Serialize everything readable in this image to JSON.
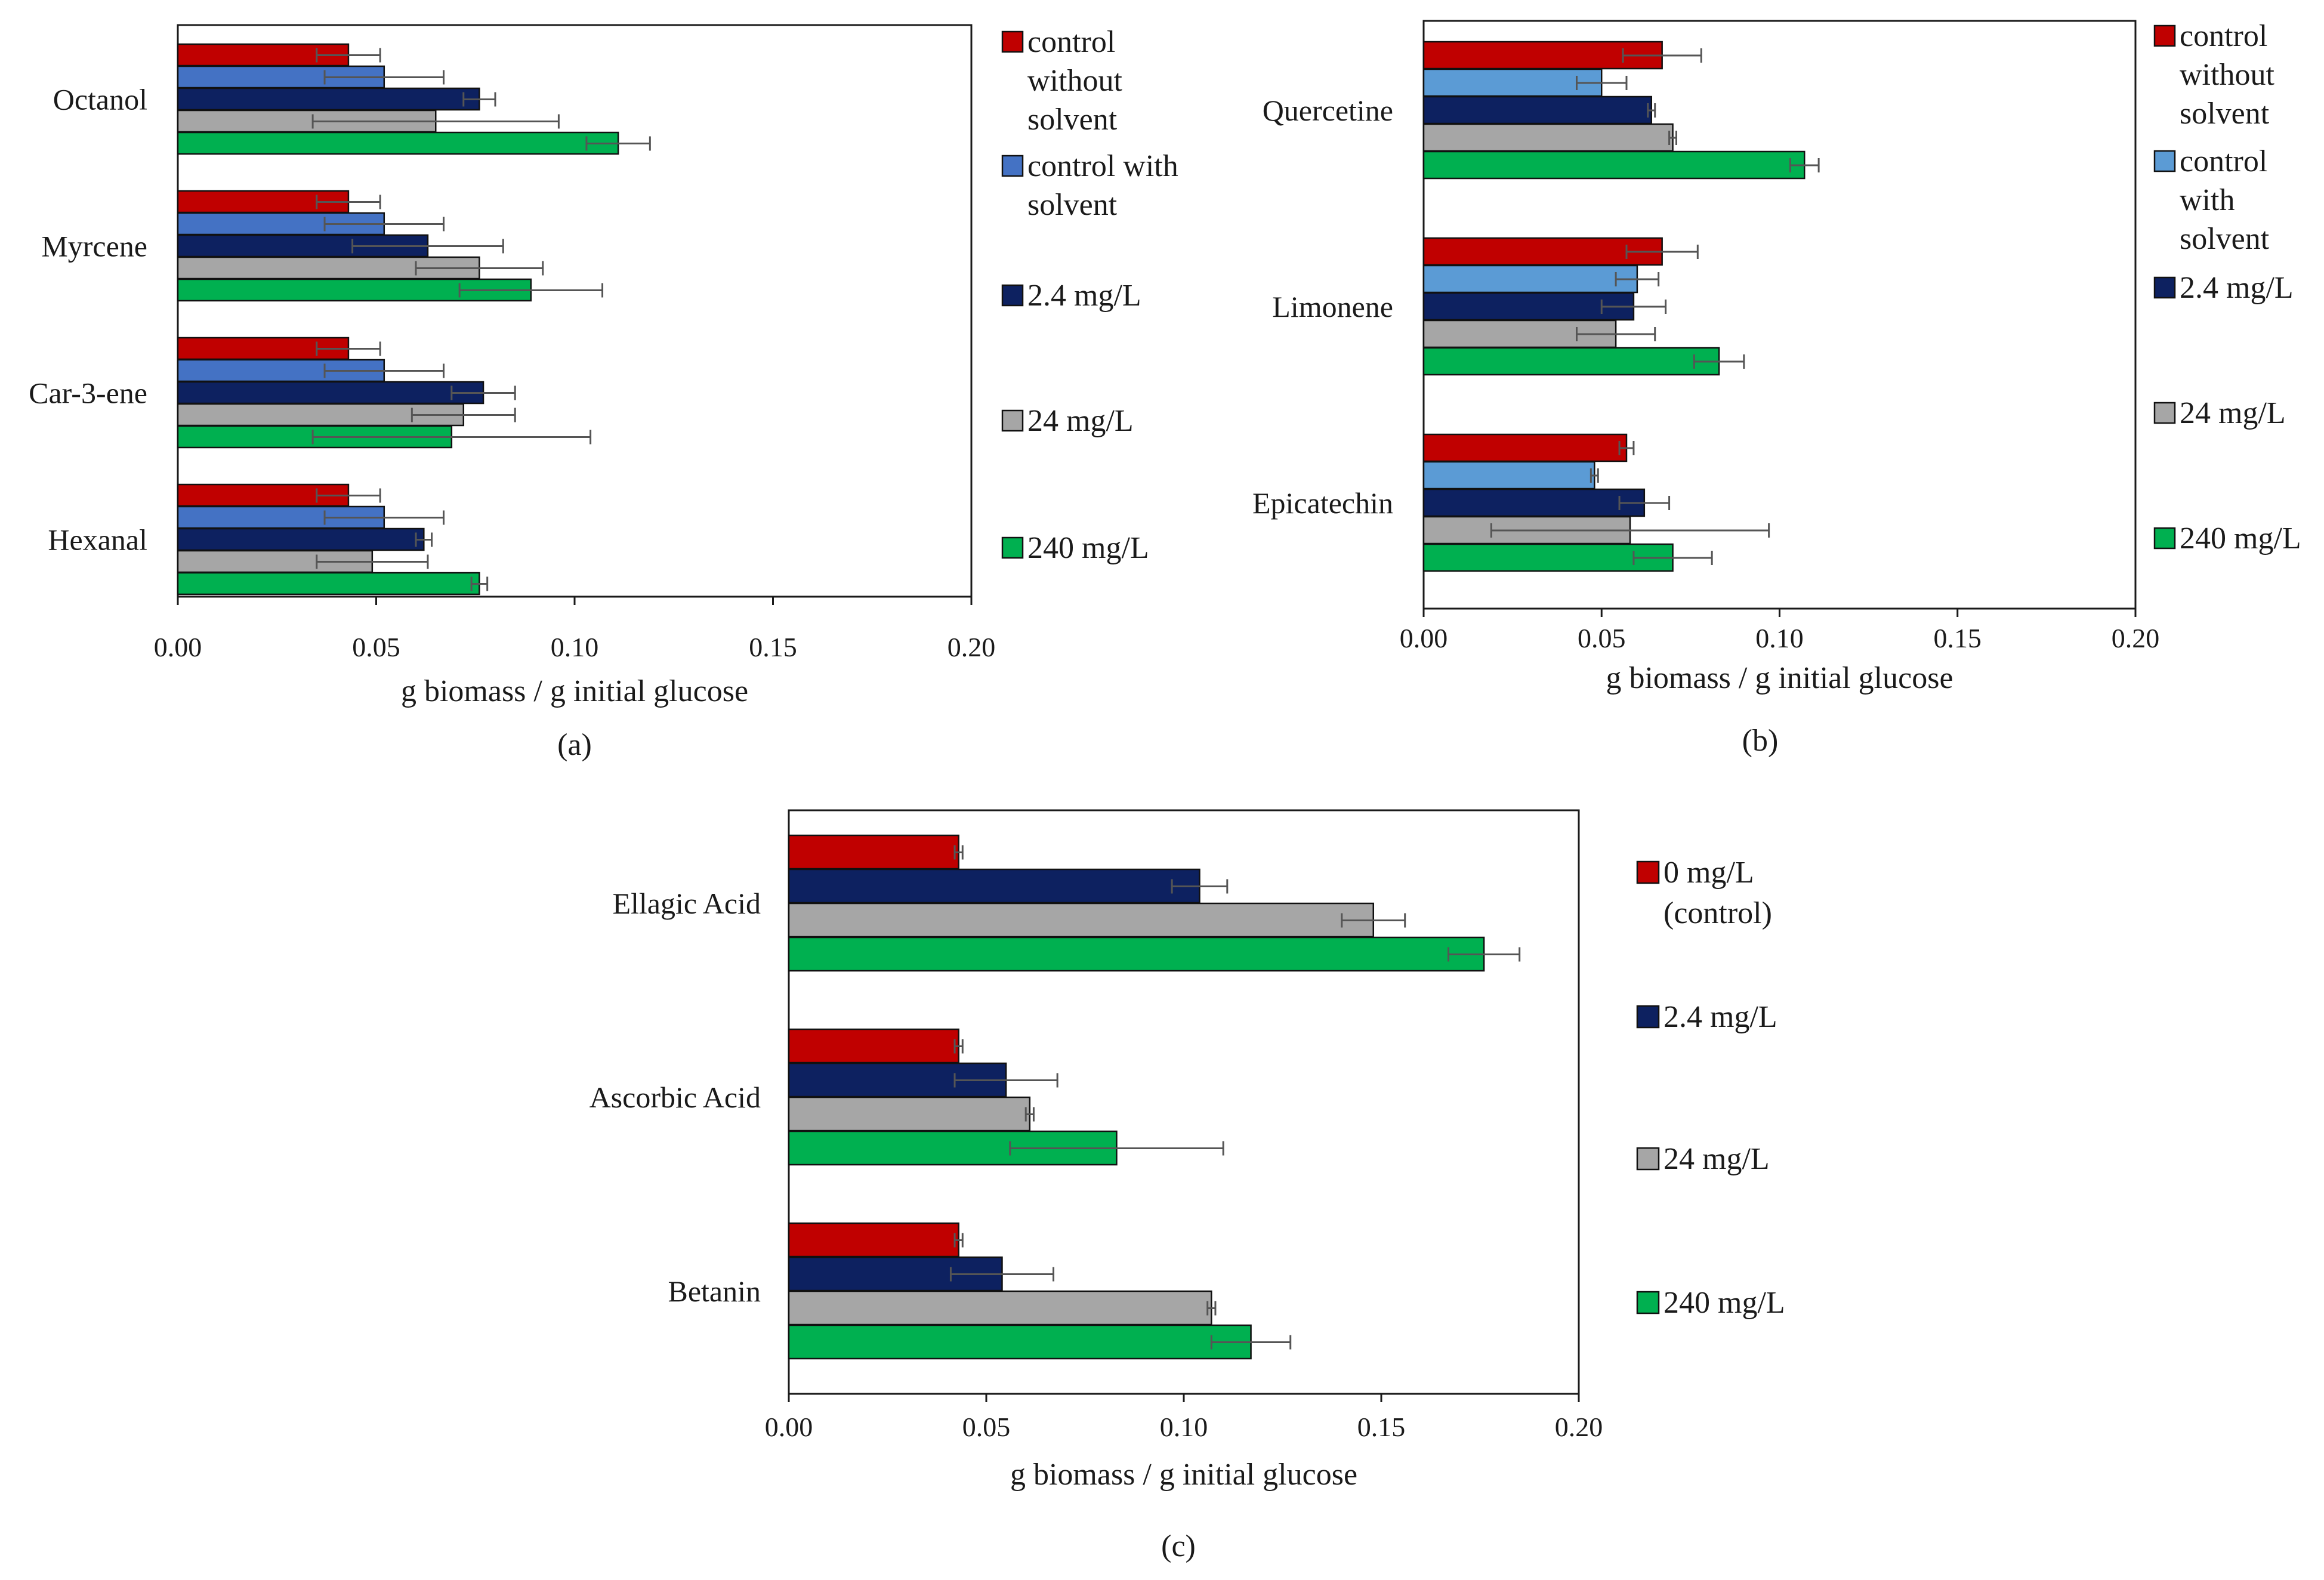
{
  "chart_data": [
    {
      "type": "bar",
      "orientation": "horizontal",
      "panel_label": "(a)",
      "xlabel": "g biomass / g initial glucose",
      "xlim": [
        0,
        0.2
      ],
      "xticks": [
        "0.00",
        "0.05",
        "0.10",
        "0.15",
        "0.20"
      ],
      "categories": [
        "Octanol",
        "Myrcene",
        "Car-3-ene",
        "Hexanal"
      ],
      "series": [
        {
          "name": "control without solvent",
          "legend_lines": [
            "control",
            "without",
            "solvent"
          ],
          "color": "#c00000",
          "values": [
            0.043,
            0.043,
            0.043,
            0.043
          ],
          "errors": [
            0.008,
            0.008,
            0.008,
            0.008
          ]
        },
        {
          "name": "control with solvent",
          "legend_lines": [
            "control with",
            "solvent"
          ],
          "color": "#4472c4",
          "values": [
            0.052,
            0.052,
            0.052,
            0.052
          ],
          "errors": [
            0.015,
            0.015,
            0.015,
            0.015
          ]
        },
        {
          "name": "2.4 mg/L",
          "legend_lines": [
            "2.4 mg/L"
          ],
          "color": "#0d2160",
          "values": [
            0.076,
            0.063,
            0.077,
            0.062
          ],
          "errors": [
            0.004,
            0.019,
            0.008,
            0.002
          ]
        },
        {
          "name": "24 mg/L",
          "legend_lines": [
            "24 mg/L"
          ],
          "color": "#a6a6a6",
          "values": [
            0.065,
            0.076,
            0.072,
            0.049
          ],
          "errors": [
            0.031,
            0.016,
            0.013,
            0.014
          ]
        },
        {
          "name": "240 mg/L",
          "legend_lines": [
            "240 mg/L"
          ],
          "color": "#00b050",
          "values": [
            0.111,
            0.089,
            0.069,
            0.076
          ],
          "errors": [
            0.008,
            0.018,
            0.035,
            0.002
          ]
        }
      ]
    },
    {
      "type": "bar",
      "orientation": "horizontal",
      "panel_label": "(b)",
      "xlabel": "g biomass / g initial glucose",
      "xlim": [
        0,
        0.2
      ],
      "xticks": [
        "0.00",
        "0.05",
        "0.10",
        "0.15",
        "0.20"
      ],
      "categories": [
        "Quercetine",
        "Limonene",
        "Epicatechin"
      ],
      "series": [
        {
          "name": "control without solvent",
          "legend_lines": [
            "control",
            "without",
            "solvent"
          ],
          "color": "#c00000",
          "values": [
            0.067,
            0.067,
            0.057
          ],
          "errors": [
            0.011,
            0.01,
            0.002
          ]
        },
        {
          "name": "control with solvent",
          "legend_lines": [
            "control",
            "with",
            "solvent"
          ],
          "color": "#5b9bd5",
          "values": [
            0.05,
            0.06,
            0.048
          ],
          "errors": [
            0.007,
            0.006,
            0.001
          ]
        },
        {
          "name": "2.4 mg/L",
          "legend_lines": [
            "2.4 mg/L"
          ],
          "color": "#0d2160",
          "values": [
            0.064,
            0.059,
            0.062
          ],
          "errors": [
            0.001,
            0.009,
            0.007
          ]
        },
        {
          "name": "24 mg/L",
          "legend_lines": [
            "24 mg/L"
          ],
          "color": "#a6a6a6",
          "values": [
            0.07,
            0.054,
            0.058
          ],
          "errors": [
            0.001,
            0.011,
            0.039
          ]
        },
        {
          "name": "240 mg/L",
          "legend_lines": [
            "240 mg/L"
          ],
          "color": "#00b050",
          "values": [
            0.107,
            0.083,
            0.07
          ],
          "errors": [
            0.004,
            0.007,
            0.011
          ]
        }
      ]
    },
    {
      "type": "bar",
      "orientation": "horizontal",
      "panel_label": "(c)",
      "xlabel": "g biomass / g initial glucose",
      "xlim": [
        0,
        0.2
      ],
      "xticks": [
        "0.00",
        "0.05",
        "0.10",
        "0.15",
        "0.20"
      ],
      "categories": [
        "Ellagic Acid",
        "Ascorbic Acid",
        "Betanin"
      ],
      "series": [
        {
          "name": "0 mg/L (control)",
          "legend_lines": [
            "0 mg/L",
            "(control)"
          ],
          "color": "#c00000",
          "values": [
            0.043,
            0.043,
            0.043
          ],
          "errors": [
            0.001,
            0.001,
            0.001
          ]
        },
        {
          "name": "2.4 mg/L",
          "legend_lines": [
            "2.4 mg/L"
          ],
          "color": "#0d2160",
          "values": [
            0.104,
            0.055,
            0.054
          ],
          "errors": [
            0.007,
            0.013,
            0.013
          ]
        },
        {
          "name": "24 mg/L",
          "legend_lines": [
            "24 mg/L"
          ],
          "color": "#a6a6a6",
          "values": [
            0.148,
            0.061,
            0.107
          ],
          "errors": [
            0.008,
            0.001,
            0.001
          ]
        },
        {
          "name": "240 mg/L",
          "legend_lines": [
            "240 mg/L"
          ],
          "color": "#00b050",
          "values": [
            0.176,
            0.083,
            0.117
          ],
          "errors": [
            0.009,
            0.027,
            0.01
          ]
        }
      ]
    }
  ]
}
